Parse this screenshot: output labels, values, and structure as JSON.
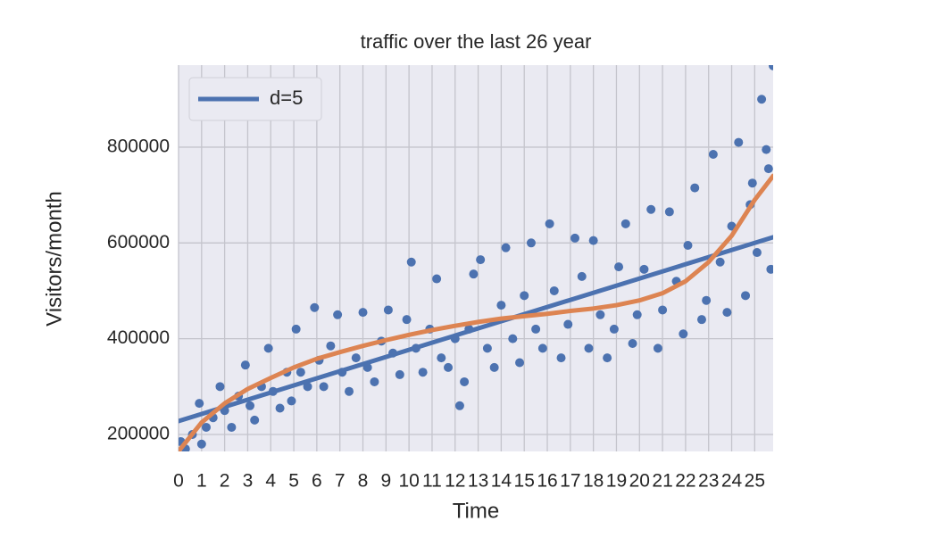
{
  "chart_data": {
    "type": "scatter",
    "title": "traffic over the last 26 year",
    "x_label": "Time",
    "y_label": "Visitors/month",
    "xlim": [
      0,
      25.8
    ],
    "ylim": [
      164600,
      971300
    ],
    "xticks": [
      0,
      1,
      2,
      3,
      4,
      5,
      6,
      7,
      8,
      9,
      10,
      11,
      12,
      13,
      14,
      15,
      16,
      17,
      18,
      19,
      20,
      21,
      22,
      23,
      24,
      25
    ],
    "yticks": [
      200000,
      400000,
      600000,
      800000
    ],
    "grid": true,
    "legend": "upper left",
    "series": [
      {
        "type": "scatter",
        "color": "#4c72b0",
        "x": [
          0.1,
          0.3,
          0.6,
          0.9,
          1.0,
          1.2,
          1.5,
          1.8,
          2.0,
          2.3,
          2.6,
          2.9,
          3.1,
          3.3,
          3.6,
          3.9,
          4.1,
          4.4,
          4.7,
          4.9,
          5.1,
          5.3,
          5.6,
          5.9,
          6.1,
          6.3,
          6.6,
          6.9,
          7.1,
          7.4,
          7.7,
          8.0,
          8.2,
          8.5,
          8.8,
          9.1,
          9.3,
          9.6,
          9.9,
          10.1,
          10.3,
          10.6,
          10.9,
          11.2,
          11.4,
          11.7,
          12.0,
          12.2,
          12.4,
          12.6,
          12.8,
          13.1,
          13.4,
          13.7,
          14.0,
          14.2,
          14.5,
          14.8,
          15.0,
          15.3,
          15.5,
          15.8,
          16.1,
          16.3,
          16.6,
          16.9,
          17.2,
          17.5,
          17.8,
          18.0,
          18.3,
          18.6,
          18.9,
          19.1,
          19.4,
          19.7,
          19.9,
          20.2,
          20.5,
          20.8,
          21.0,
          21.3,
          21.6,
          21.9,
          22.1,
          22.4,
          22.7,
          22.9,
          23.2,
          23.5,
          23.8,
          24.0,
          24.3,
          24.6,
          24.8,
          24.9,
          25.1,
          25.3,
          25.5,
          25.6,
          25.7,
          25.8
        ],
        "values": [
          185000,
          170000,
          200000,
          265000,
          180000,
          215000,
          235000,
          300000,
          250000,
          215000,
          280000,
          345000,
          260000,
          230000,
          300000,
          380000,
          290000,
          255000,
          330000,
          270000,
          420000,
          330000,
          300000,
          465000,
          355000,
          300000,
          385000,
          450000,
          330000,
          290000,
          360000,
          455000,
          340000,
          310000,
          395000,
          460000,
          370000,
          325000,
          440000,
          560000,
          380000,
          330000,
          420000,
          525000,
          360000,
          340000,
          400000,
          260000,
          310000,
          420000,
          535000,
          565000,
          380000,
          340000,
          470000,
          590000,
          400000,
          350000,
          490000,
          600000,
          420000,
          380000,
          640000,
          500000,
          360000,
          430000,
          610000,
          530000,
          380000,
          605000,
          450000,
          360000,
          420000,
          550000,
          640000,
          390000,
          450000,
          545000,
          670000,
          380000,
          460000,
          665000,
          520000,
          410000,
          595000,
          715000,
          440000,
          480000,
          785000,
          560000,
          455000,
          635000,
          810000,
          490000,
          680000,
          725000,
          580000,
          900000,
          795000,
          755000,
          545000,
          970000
        ]
      },
      {
        "type": "line",
        "name": "d=5",
        "color": "#4c72b0",
        "x": [
          0,
          25.8
        ],
        "values": [
          228000,
          612000
        ]
      },
      {
        "type": "line",
        "color": "#dd8452",
        "x": [
          0,
          1,
          2,
          3,
          4,
          5,
          6,
          7,
          8,
          9,
          10,
          11,
          12,
          13,
          14,
          15,
          16,
          17,
          18,
          19,
          20,
          21,
          22,
          23,
          24,
          25,
          25.8
        ],
        "values": [
          165000,
          225000,
          265000,
          295000,
          318000,
          340000,
          358000,
          372000,
          385000,
          397000,
          408000,
          418000,
          427000,
          435000,
          442000,
          447000,
          452000,
          458000,
          463000,
          470000,
          480000,
          495000,
          520000,
          560000,
          615000,
          690000,
          740000
        ]
      }
    ]
  }
}
